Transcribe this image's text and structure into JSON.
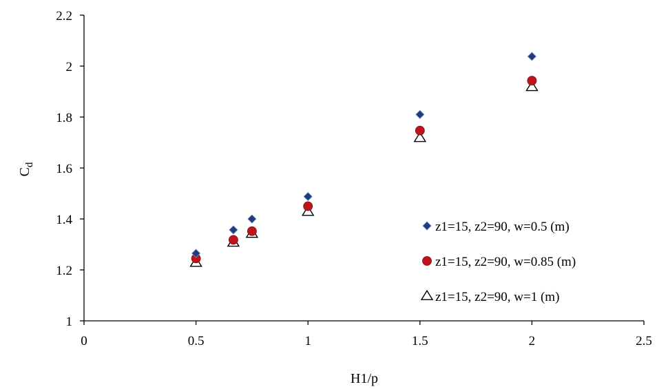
{
  "chart_data": {
    "type": "scatter",
    "xlabel": "H1/p",
    "ylabel": {
      "main": "C",
      "sub": "d"
    },
    "xlim": [
      0,
      2.5
    ],
    "ylim": [
      1,
      2.2
    ],
    "xticks": [
      {
        "v": 0,
        "label": "0"
      },
      {
        "v": 0.5,
        "label": "0.5"
      },
      {
        "v": 1,
        "label": "1"
      },
      {
        "v": 1.5,
        "label": "1.5"
      },
      {
        "v": 2,
        "label": "2"
      },
      {
        "v": 2.5,
        "label": "2.5"
      }
    ],
    "yticks": [
      {
        "v": 1,
        "label": "1"
      },
      {
        "v": 1.2,
        "label": "1.2"
      },
      {
        "v": 1.4,
        "label": "1.4"
      },
      {
        "v": 1.6,
        "label": "1.6"
      },
      {
        "v": 1.8,
        "label": "1.8"
      },
      {
        "v": 2,
        "label": "2"
      },
      {
        "v": 2.2,
        "label": "2.2"
      }
    ],
    "grid": false,
    "legend_position": "right",
    "series": [
      {
        "name": "z1=15, z2=90, w=0.5 (m)",
        "marker": "diamond",
        "color": "#1f3d7a",
        "x": [
          0.5,
          0.667,
          0.75,
          1,
          1.5,
          2
        ],
        "y": [
          1.265,
          1.357,
          1.4,
          1.488,
          1.81,
          2.038
        ]
      },
      {
        "name": "z1=15, z2=90, w=0.85 (m)",
        "marker": "circle",
        "color": "#c0141c",
        "x": [
          0.5,
          0.667,
          0.75,
          1,
          1.5,
          2
        ],
        "y": [
          1.245,
          1.318,
          1.352,
          1.45,
          1.747,
          1.943
        ]
      },
      {
        "name": "z1=15, z2=90, w=1 (m)",
        "marker": "triangle",
        "color": "#000000",
        "x": [
          0.5,
          0.667,
          0.75,
          1,
          1.5,
          2
        ],
        "y": [
          1.228,
          1.307,
          1.342,
          1.428,
          1.718,
          1.918
        ]
      }
    ]
  }
}
